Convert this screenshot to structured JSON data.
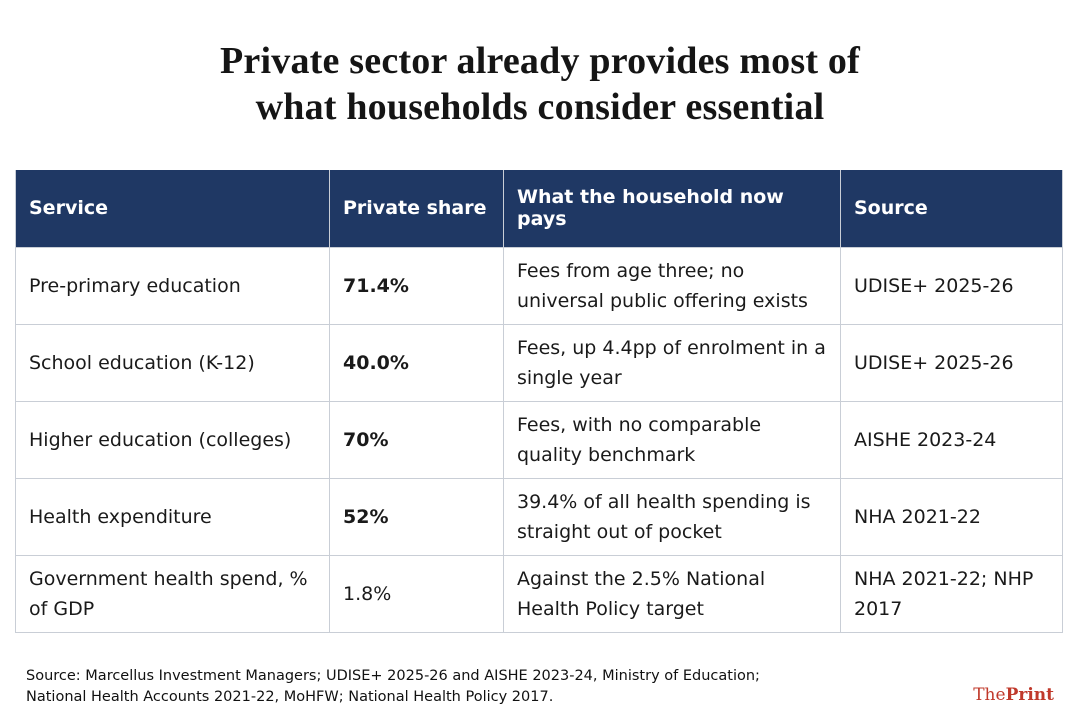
{
  "title": {
    "line1": "Private sector already provides most of",
    "line2": "what households consider essential"
  },
  "table": {
    "headers": [
      "Service",
      "Private share",
      "What the household now pays",
      "Source"
    ],
    "rows": [
      {
        "service": "Pre-primary education",
        "share": "71.4%",
        "pays": "Fees from age three; no universal public offering exists",
        "source": "UDISE+ 2025-26"
      },
      {
        "service": "School education (K-12)",
        "share": "40.0%",
        "pays": "Fees, up 4.4pp of enrolment in a single year",
        "source": "UDISE+ 2025-26"
      },
      {
        "service": "Higher education (colleges)",
        "share": "70%",
        "pays": "Fees, with no comparable quality benchmark",
        "source": "AISHE 2023-24"
      },
      {
        "service": "Health expenditure",
        "share": "52%",
        "pays": "39.4% of all health spending is straight out of pocket",
        "source": "NHA 2021-22"
      },
      {
        "service": "Government health spend, % of GDP",
        "share": "1.8%",
        "pays": "Against the 2.5% National Health Policy target",
        "source": "NHA 2021-22; NHP 2017"
      }
    ]
  },
  "footer": {
    "source_line1": "Source: Marcellus Investment Managers; UDISE+ 2025-26 and AISHE 2023-24, Ministry of Education;",
    "source_line2": "National Health Accounts 2021-22, MoHFW; National Health Policy 2017.",
    "logo_the": "The",
    "logo_print": "Print"
  },
  "colors": {
    "header_bg": "#1f3864",
    "highlight_text": "#1f3864",
    "logo": "#c0392b"
  }
}
